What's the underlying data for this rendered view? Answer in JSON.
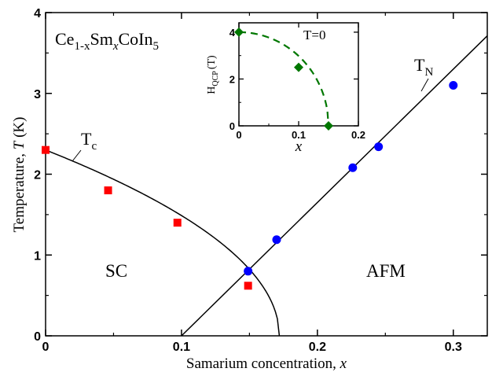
{
  "chart_data": [
    {
      "type": "scatter",
      "title": "",
      "xlabel": "Samarium concentration, x",
      "ylabel": "Temperature, T (K)",
      "xlim": [
        0,
        0.325
      ],
      "ylim": [
        0,
        4
      ],
      "x_ticks": [
        "0",
        "0.1",
        "0.2",
        "0.3"
      ],
      "y_ticks": [
        "0",
        "1",
        "2",
        "3",
        "4"
      ],
      "compound_label": {
        "base": "Ce",
        "sub1": "1-x",
        "mid": "Sm",
        "sub2": "x",
        "end": "CoIn",
        "sub3": "5"
      },
      "region_labels": [
        "SC",
        "AFM"
      ],
      "line_labels": [
        {
          "main": "T",
          "sub": "c"
        },
        {
          "main": "T",
          "sub": "N"
        }
      ],
      "series": [
        {
          "name": "Tc",
          "marker": "square",
          "color": "#ff0000",
          "x": [
            0.0,
            0.046,
            0.097,
            0.149
          ],
          "y": [
            2.3,
            1.8,
            1.4,
            0.62
          ]
        },
        {
          "name": "TN",
          "marker": "circle",
          "color": "#0000ff",
          "x": [
            0.149,
            0.17,
            0.226,
            0.245,
            0.3
          ],
          "y": [
            0.8,
            1.19,
            2.08,
            2.34,
            3.1
          ]
        }
      ],
      "fit_curves": [
        {
          "name": "Tc fit",
          "color": "#000000",
          "x_end": 0.172,
          "y0": 2.3,
          "exponent": 0.5
        },
        {
          "name": "TN fit",
          "color": "#000000",
          "x0": 0.1,
          "slope": 16.5
        }
      ],
      "grid": false,
      "legend": "none"
    },
    {
      "type": "scatter",
      "title": "",
      "xlabel": "x",
      "ylabel": {
        "main": "H",
        "sub": "QCP",
        "unit": "(T)"
      },
      "annotation": "T=0",
      "xlim": [
        0,
        0.2
      ],
      "ylim": [
        0,
        4.4
      ],
      "x_ticks": [
        "0",
        "0.1",
        "0.2"
      ],
      "y_ticks": [
        "0",
        "2",
        "4"
      ],
      "series": [
        {
          "name": "HQCP",
          "marker": "diamond",
          "color": "#007700",
          "x": [
            0.0,
            0.1,
            0.15
          ],
          "y": [
            4.0,
            2.5,
            0.0
          ]
        }
      ],
      "fit_curves": [
        {
          "name": "HQCP fit",
          "color": "#007700",
          "style": "dashed",
          "y0": 4.0,
          "x_end": 0.15
        }
      ],
      "grid": false,
      "legend": "none"
    }
  ]
}
